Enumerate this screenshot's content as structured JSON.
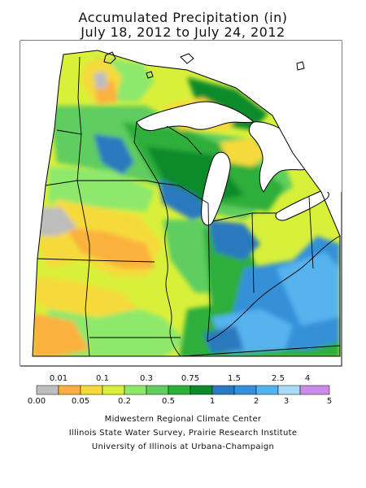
{
  "title": {
    "line1": "Accumulated Precipitation (in)",
    "line2": "July 18, 2012 to July 24, 2012"
  },
  "legend": {
    "top_labels": [
      "0.01",
      "0.1",
      "0.3",
      "0.75",
      "1.5",
      "2.5",
      "4"
    ],
    "bottom_labels": [
      "0.00",
      "0.05",
      "0.2",
      "0.5",
      "1",
      "2",
      "3",
      "5"
    ],
    "colors": [
      "#bdbdbd",
      "#fbb13c",
      "#f6da3a",
      "#d9f03a",
      "#8ee86c",
      "#5fcd5f",
      "#2fae3a",
      "#0c8a2c",
      "#2b79be",
      "#3590d8",
      "#56b3ee",
      "#a9dcf7",
      "#c98ce8"
    ]
  },
  "credits": {
    "line1": "Midwestern Regional Climate Center",
    "line2": "Illinois State Water Survey, Prairie Research Institute",
    "line3": "University of Illinois at Urbana-Champaign"
  }
}
